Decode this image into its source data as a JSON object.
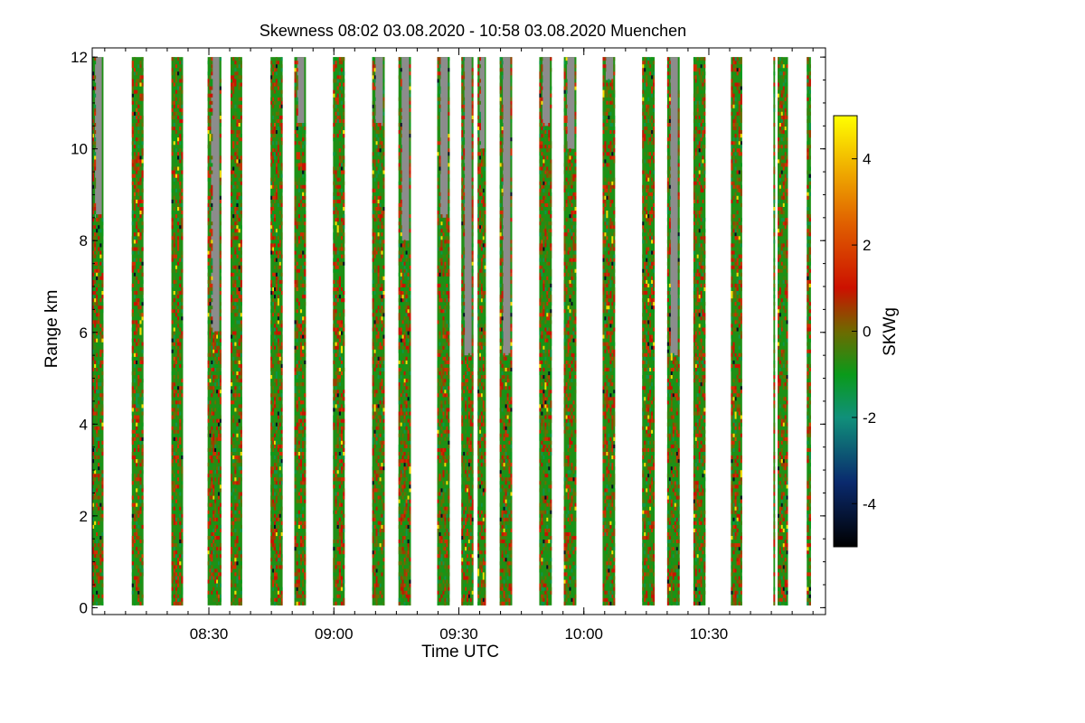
{
  "chart_data": {
    "type": "heatmap",
    "title": "Skewness   08:02 03.08.2020 - 10:58 03.08.2020 Muenchen",
    "xlabel": "Time UTC",
    "ylabel": "Range km",
    "xlim_minutes_utc": [
      482,
      658
    ],
    "ylim_km": [
      -0.15,
      12.2
    ],
    "x_ticks": [
      {
        "minutes": 510,
        "label": "08:30"
      },
      {
        "minutes": 540,
        "label": "09:00"
      },
      {
        "minutes": 570,
        "label": "09:30"
      },
      {
        "minutes": 600,
        "label": "10:00"
      },
      {
        "minutes": 630,
        "label": "10:30"
      }
    ],
    "y_ticks": [
      {
        "value": 0,
        "label": "0"
      },
      {
        "value": 2,
        "label": "2"
      },
      {
        "value": 4,
        "label": "4"
      },
      {
        "value": 6,
        "label": "6"
      },
      {
        "value": 8,
        "label": "8"
      },
      {
        "value": 10,
        "label": "10"
      },
      {
        "value": 12,
        "label": "12"
      }
    ],
    "range_extent_km": [
      0.05,
      12.0
    ],
    "scan_segments": [
      {
        "start_min": 482.0,
        "end_min": 484.7,
        "missing_above_km": 8.5
      },
      {
        "start_min": 491.5,
        "end_min": 494.3,
        "missing_above_km": null
      },
      {
        "start_min": 501.0,
        "end_min": 503.8,
        "missing_above_km": null
      },
      {
        "start_min": 509.7,
        "end_min": 513.0,
        "missing_above_km": 6.0
      },
      {
        "start_min": 515.2,
        "end_min": 518.0,
        "missing_above_km": null
      },
      {
        "start_min": 524.8,
        "end_min": 527.7,
        "missing_above_km": null
      },
      {
        "start_min": 530.5,
        "end_min": 533.3,
        "missing_above_km": 10.5
      },
      {
        "start_min": 539.8,
        "end_min": 542.6,
        "missing_above_km": null
      },
      {
        "start_min": 549.2,
        "end_min": 552.2,
        "missing_above_km": 10.5
      },
      {
        "start_min": 555.5,
        "end_min": 558.5,
        "missing_above_km": 8.0
      },
      {
        "start_min": 564.8,
        "end_min": 567.8,
        "missing_above_km": 8.5
      },
      {
        "start_min": 570.6,
        "end_min": 573.5,
        "missing_above_km": 5.5
      },
      {
        "start_min": 574.5,
        "end_min": 576.5,
        "missing_above_km": 10.0
      },
      {
        "start_min": 579.8,
        "end_min": 582.8,
        "missing_above_km": 5.5
      },
      {
        "start_min": 589.3,
        "end_min": 592.3,
        "missing_above_km": 10.5
      },
      {
        "start_min": 595.2,
        "end_min": 598.2,
        "missing_above_km": 10.0
      },
      {
        "start_min": 604.5,
        "end_min": 607.5,
        "missing_above_km": 11.5
      },
      {
        "start_min": 614.0,
        "end_min": 617.0,
        "missing_above_km": null
      },
      {
        "start_min": 620.0,
        "end_min": 623.0,
        "missing_above_km": 5.5
      },
      {
        "start_min": 626.3,
        "end_min": 629.2,
        "missing_above_km": null
      },
      {
        "start_min": 635.3,
        "end_min": 638.0,
        "missing_above_km": null
      },
      {
        "start_min": 645.5,
        "end_min": 645.9,
        "missing_above_km": null
      },
      {
        "start_min": 646.5,
        "end_min": 649.0,
        "missing_above_km": null
      },
      {
        "start_min": 653.5,
        "end_min": 654.5,
        "missing_above_km": null
      }
    ],
    "colorbar": {
      "label": "SKWg",
      "range": [
        -5,
        5
      ],
      "ticks": [
        {
          "value": -4,
          "label": "-4"
        },
        {
          "value": -2,
          "label": "-2"
        },
        {
          "value": 0,
          "label": "0"
        },
        {
          "value": 2,
          "label": "2"
        },
        {
          "value": 4,
          "label": "4"
        }
      ],
      "stops": [
        {
          "value": -5,
          "color": "#000000"
        },
        {
          "value": -3.5,
          "color": "#0a2a6e"
        },
        {
          "value": -2,
          "color": "#10907a"
        },
        {
          "value": -1,
          "color": "#0a9a1a"
        },
        {
          "value": 0,
          "color": "#6e6a00"
        },
        {
          "value": 1,
          "color": "#cc1100"
        },
        {
          "value": 2.5,
          "color": "#e06000"
        },
        {
          "value": 3.8,
          "color": "#f0b000"
        },
        {
          "value": 5,
          "color": "#ffff00"
        }
      ]
    }
  },
  "colors": {
    "missing": "#8c8c8c",
    "background": "#ffffff"
  }
}
